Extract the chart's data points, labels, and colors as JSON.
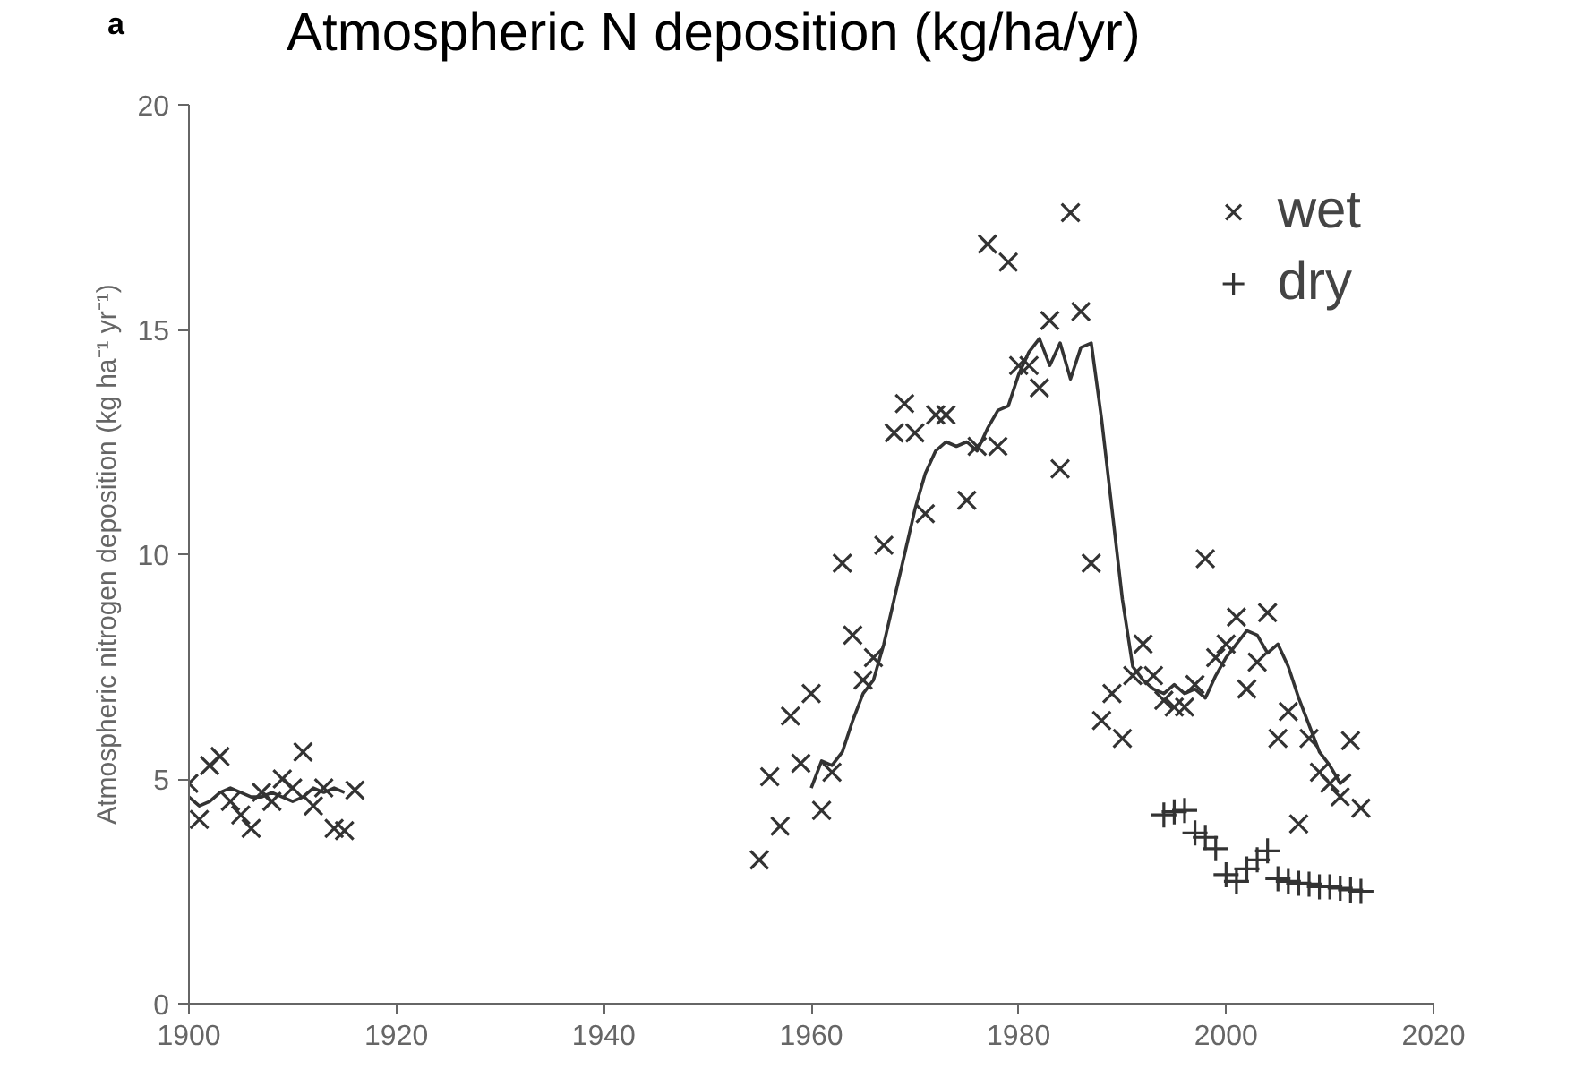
{
  "chart_data": {
    "type": "scatter",
    "title": "Atmospheric N deposition (kg/ha/yr)",
    "ylabel": "Atmospheric nitrogen deposition (kg ha⁻¹ yr⁻¹)",
    "annotations": [
      "a"
    ],
    "xlim": [
      1900,
      2020
    ],
    "xticks": [
      1900,
      1920,
      1940,
      1960,
      1980,
      2000,
      2020
    ],
    "ylim": [
      0,
      20
    ],
    "yticks": [
      0,
      5,
      10,
      15,
      20
    ],
    "grid": false,
    "legend": "top right",
    "series": [
      {
        "name": "wet",
        "type": "scatter",
        "marker": "cross",
        "color": "#333333",
        "x": [
          1900,
          1901,
          1902,
          1903,
          1904,
          1905,
          1906,
          1907,
          1908,
          1909,
          1910,
          1911,
          1912,
          1913,
          1914,
          1915,
          1916,
          1955,
          1956,
          1957,
          1958,
          1959,
          1960,
          1961,
          1962,
          1963,
          1964,
          1965,
          1966,
          1967,
          1968,
          1969,
          1970,
          1971,
          1972,
          1973,
          1975,
          1976,
          1977,
          1978,
          1979,
          1980,
          1981,
          1982,
          1983,
          1984,
          1985,
          1986,
          1987,
          1988,
          1989,
          1990,
          1991,
          1992,
          1993,
          1994,
          1995,
          1996,
          1997,
          1998,
          1999,
          2000,
          2001,
          2002,
          2003,
          2004,
          2005,
          2006,
          2007,
          2008,
          2009,
          2010,
          2011,
          2012,
          2013
        ],
        "values": [
          4.9,
          4.1,
          5.3,
          5.5,
          4.5,
          4.2,
          3.9,
          4.7,
          4.5,
          5.0,
          4.8,
          5.6,
          4.4,
          4.8,
          3.9,
          3.85,
          4.75,
          3.2,
          5.05,
          3.95,
          6.4,
          5.35,
          6.9,
          4.3,
          5.15,
          9.8,
          8.2,
          7.2,
          7.7,
          10.2,
          12.7,
          13.35,
          12.7,
          10.9,
          13.1,
          13.1,
          11.2,
          12.4,
          16.9,
          12.4,
          16.5,
          14.2,
          14.2,
          13.7,
          15.2,
          11.9,
          17.6,
          15.4,
          9.8,
          6.3,
          6.9,
          5.9,
          7.3,
          8.0,
          7.3,
          6.75,
          6.6,
          6.6,
          7.1,
          9.9,
          7.7,
          8.0,
          8.6,
          7.0,
          7.6,
          8.7,
          5.9,
          6.5,
          4.0,
          5.9,
          5.15,
          4.9,
          4.6,
          5.85,
          4.35
        ]
      },
      {
        "name": "dry",
        "type": "scatter",
        "marker": "plus",
        "color": "#333333",
        "x": [
          1994,
          1995,
          1996,
          1997,
          1998,
          1999,
          2000,
          2001,
          2002,
          2003,
          2004,
          2005,
          2006,
          2007,
          2008,
          2009,
          2010,
          2011,
          2012,
          2013
        ],
        "values": [
          4.2,
          4.27,
          4.3,
          3.8,
          3.7,
          3.45,
          2.87,
          2.72,
          3.0,
          3.2,
          3.4,
          2.78,
          2.72,
          2.68,
          2.66,
          2.6,
          2.6,
          2.57,
          2.53,
          2.5
        ]
      },
      {
        "type": "line",
        "color": "#333333",
        "x": [
          1900,
          1901,
          1902,
          1903,
          1904,
          1905,
          1906,
          1907,
          1908,
          1909,
          1910,
          1911,
          1912,
          1913,
          1914,
          1915,
          1930,
          1960,
          1961,
          1962,
          1963,
          1964,
          1965,
          1966,
          1967,
          1968,
          1969,
          1970,
          1971,
          1972,
          1973,
          1974,
          1975,
          1976,
          1977,
          1978,
          1979,
          1980,
          1981,
          1982,
          1983,
          1984,
          1985,
          1986,
          1987,
          1988,
          1989,
          1990,
          1991,
          1992,
          1993,
          1994,
          1995,
          1996,
          1997,
          1998,
          1999,
          2000,
          2001,
          2002,
          2003,
          2004,
          2005,
          2006,
          2007,
          2008,
          2009,
          2010,
          2011,
          2012
        ],
        "values": [
          4.6,
          4.4,
          4.5,
          4.7,
          4.8,
          4.7,
          4.6,
          4.6,
          4.7,
          4.6,
          4.5,
          4.6,
          4.8,
          4.7,
          4.8,
          4.7,
          null,
          4.8,
          5.4,
          5.3,
          5.6,
          6.3,
          6.9,
          7.2,
          8.0,
          9.0,
          10.0,
          11.0,
          11.8,
          12.3,
          12.5,
          12.4,
          12.5,
          12.3,
          12.8,
          13.2,
          13.3,
          14.0,
          14.5,
          14.8,
          14.2,
          14.7,
          13.9,
          14.6,
          14.7,
          13.0,
          11.0,
          9.0,
          7.5,
          7.2,
          7.0,
          6.9,
          7.1,
          6.9,
          7.0,
          6.8,
          7.3,
          7.7,
          8.0,
          8.3,
          8.2,
          7.8,
          8.0,
          7.5,
          6.8,
          6.2,
          5.6,
          5.3,
          4.9,
          5.1
        ]
      }
    ]
  }
}
